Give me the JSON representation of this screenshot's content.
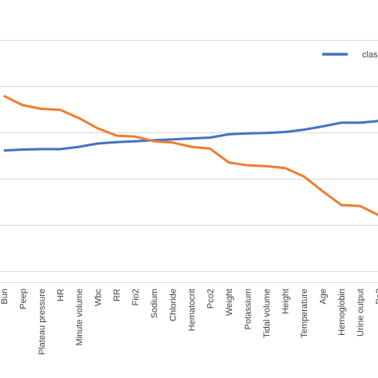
{
  "chart_data": {
    "type": "line",
    "categories": [
      "Bun",
      "Peep",
      "Plateau pressure",
      "HR",
      "Minute volume",
      "Wbc",
      "RR",
      "Fio2",
      "Sodium",
      "Chloride",
      "Hematocrit",
      "Pco2",
      "Weight",
      "Potassium",
      "Tidal volume",
      "Height",
      "Temperature",
      "Age",
      "Hemoglobin",
      "Urine output",
      "Pa?"
    ],
    "series": [
      {
        "name": "clas",
        "color": "#4472c4",
        "values": [
          0.1,
          0.12,
          0.13,
          0.13,
          0.18,
          0.25,
          0.28,
          0.3,
          0.32,
          0.34,
          0.36,
          0.38,
          0.45,
          0.47,
          0.48,
          0.5,
          0.55,
          0.62,
          0.7,
          0.7,
          0.74
        ]
      },
      {
        "color": "#ed7d31",
        "values": [
          1.28,
          1.08,
          1.0,
          0.98,
          0.8,
          0.58,
          0.42,
          0.4,
          0.3,
          0.27,
          0.18,
          0.14,
          -0.16,
          -0.22,
          -0.24,
          -0.28,
          -0.46,
          -0.78,
          -1.08,
          -1.1,
          -1.3
        ]
      }
    ],
    "ylim": [
      -2.75,
      3.25
    ],
    "yticks": [
      -2.5,
      -1.5,
      -0.5,
      0.5,
      1.5,
      2.5
    ],
    "grid": true,
    "legend": "top-right"
  }
}
